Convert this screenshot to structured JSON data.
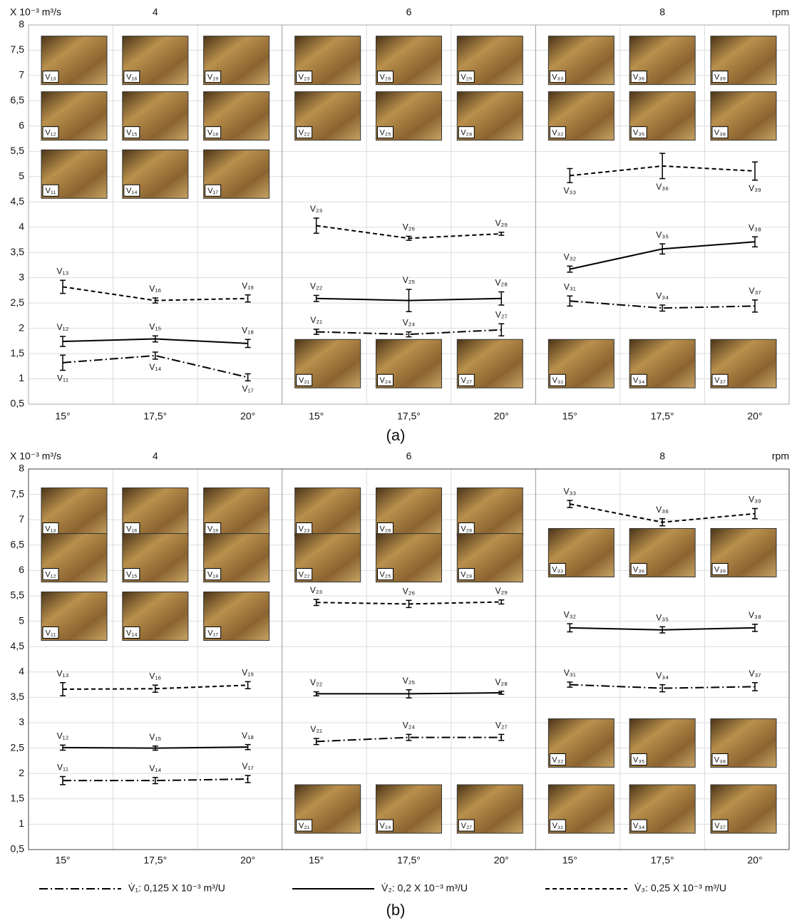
{
  "chart_data": [
    {
      "type": "line",
      "caption": "(a)",
      "y_label": "X 10⁻³ m³/s",
      "group_axis_label": "rpm",
      "groups": [
        "4",
        "6",
        "8"
      ],
      "categories": [
        "15°",
        "17,5°",
        "20°",
        "15°",
        "17,5°",
        "20°",
        "15°",
        "17,5°",
        "20°"
      ],
      "ylim": [
        0.5,
        8
      ],
      "yticks": [
        {
          "value": 0.5,
          "label": "0,5"
        },
        1,
        {
          "value": 1.5,
          "label": "1,5"
        },
        2,
        {
          "value": 2.5,
          "label": "2,5"
        },
        3,
        {
          "value": 3.5,
          "label": "3,5"
        },
        4,
        {
          "value": 4.5,
          "label": "4,5"
        },
        5,
        {
          "value": 5.5,
          "label": "5,5"
        },
        6,
        {
          "value": 6.5,
          "label": "6,5"
        },
        7,
        {
          "value": 7.5,
          "label": "7,5"
        },
        8
      ],
      "series": [
        {
          "dash": "dashdot",
          "color": "#000",
          "values": [
            1.32,
            1.46,
            1.03,
            1.93,
            1.88,
            1.97,
            2.54,
            2.4,
            2.44
          ],
          "errors": [
            0.15,
            0.07,
            0.07,
            0.05,
            0.05,
            0.12,
            0.1,
            0.06,
            0.12
          ],
          "point_labels": [
            "V₁₁",
            "V₁₄",
            "V₁₇",
            "V₂₁",
            "V₂₄",
            "V₂₇",
            "V₃₁",
            "V₃₄",
            "V₃₇"
          ]
        },
        {
          "dash": "solid",
          "color": "#000",
          "values": [
            1.74,
            1.79,
            1.7,
            2.59,
            2.55,
            2.59,
            3.17,
            3.57,
            3.71
          ],
          "errors": [
            0.1,
            0.06,
            0.08,
            0.06,
            0.22,
            0.13,
            0.06,
            0.1,
            0.1
          ],
          "point_labels": [
            "V₁₂",
            "V₁₅",
            "V₁₈",
            "V₂₂",
            "V₂₅",
            "V₂₈",
            "V₃₂",
            "V₃₅",
            "V₃₈"
          ]
        },
        {
          "dash": "dashed",
          "color": "#000",
          "values": [
            2.82,
            2.55,
            2.59,
            4.03,
            3.78,
            3.87,
            5.02,
            5.21,
            5.11
          ],
          "errors": [
            0.13,
            0.05,
            0.07,
            0.15,
            0.04,
            0.03,
            0.14,
            0.25,
            0.18
          ],
          "point_labels": [
            "V₁₃",
            "V₁₆",
            "V₁₉",
            "V₂₃",
            "V₂₆",
            "V₂₉",
            "V₃₃",
            "V₃₆",
            "V₃₉"
          ]
        }
      ],
      "photos": [
        [
          "V₁₃",
          "V₁₆",
          "V₁₉"
        ],
        [
          "V₁₂",
          "V₁₅",
          "V₁₈"
        ],
        [
          "V₁₁",
          "V₁₄",
          "V₁₇"
        ],
        [
          "V₂₃",
          "V₂₆",
          "V₂₉"
        ],
        [
          "V₂₂",
          "V₂₅",
          "V₂₈"
        ],
        [
          "V₂₁",
          "V₂₄",
          "V₂₇"
        ],
        [
          "V₃₃",
          "V₃₆",
          "V₃₉"
        ],
        [
          "V₃₂",
          "V₃₅",
          "V₃₈"
        ],
        [
          "V₃₁",
          "V₃₄",
          "V₃₇"
        ]
      ]
    },
    {
      "type": "line",
      "caption": "(b)",
      "y_label": "X 10⁻³ m³/s",
      "group_axis_label": "rpm",
      "groups": [
        "4",
        "6",
        "8"
      ],
      "categories": [
        "15°",
        "17,5°",
        "20°",
        "15°",
        "17,5°",
        "20°",
        "15°",
        "17,5°",
        "20°"
      ],
      "ylim": [
        0.5,
        8
      ],
      "yticks": [
        {
          "value": 0.5,
          "label": "0,5"
        },
        1,
        {
          "value": 1.5,
          "label": "1,5"
        },
        2,
        {
          "value": 2.5,
          "label": "2,5"
        },
        3,
        {
          "value": 3.5,
          "label": "3,5"
        },
        4,
        {
          "value": 4.5,
          "label": "4,5"
        },
        5,
        {
          "value": 5.5,
          "label": "5,5"
        },
        6,
        {
          "value": 6.5,
          "label": "6,5"
        },
        7,
        {
          "value": 7.5,
          "label": "7,5"
        },
        8
      ],
      "series": [
        {
          "name": "V̇₁: 0,125 X 10⁻³ m³/U",
          "dash": "dashdot",
          "color": "#000",
          "values": [
            1.86,
            1.86,
            1.89,
            2.63,
            2.71,
            2.71,
            3.75,
            3.68,
            3.71
          ],
          "errors": [
            0.08,
            0.06,
            0.07,
            0.06,
            0.06,
            0.06,
            0.05,
            0.07,
            0.08
          ],
          "point_labels": [
            "V₁₁",
            "V₁₄",
            "V₁₇",
            "V₂₁",
            "V₂₄",
            "V₂₇",
            "V₃₁",
            "V₃₄",
            "V₃₇"
          ]
        },
        {
          "name": "V̇₂: 0,2 X 10⁻³ m³/U",
          "dash": "solid",
          "color": "#000",
          "values": [
            2.51,
            2.5,
            2.52,
            3.57,
            3.57,
            3.59,
            4.87,
            4.83,
            4.87
          ],
          "errors": [
            0.05,
            0.04,
            0.05,
            0.04,
            0.08,
            0.03,
            0.08,
            0.06,
            0.07
          ],
          "point_labels": [
            "V₁₂",
            "V₁₅",
            "V₁₈",
            "V₂₂",
            "V₂₅",
            "V₂₈",
            "V₃₂",
            "V₃₅",
            "V₃₈"
          ]
        },
        {
          "name": "V̇₃: 0,25 X 10⁻³ m³/U",
          "dash": "dashed",
          "color": "#000",
          "values": [
            3.66,
            3.67,
            3.74,
            5.37,
            5.34,
            5.38,
            7.31,
            6.95,
            7.12
          ],
          "errors": [
            0.13,
            0.07,
            0.07,
            0.06,
            0.07,
            0.04,
            0.07,
            0.07,
            0.1
          ],
          "point_labels": [
            "V₁₃",
            "V₁₆",
            "V₁₉",
            "V₂₃",
            "V₂₆",
            "V₂₉",
            "V₃₃",
            "V₃₆",
            "V₃₉"
          ]
        }
      ],
      "photos": [
        [
          "V₁₃",
          "V₁₆",
          "V₁₉"
        ],
        [
          "V₁₂",
          "V₁₅",
          "V₁₈"
        ],
        [
          "V₁₁",
          "V₁₄",
          "V₁₇"
        ],
        [
          "V₂₃",
          "V₂₆",
          "V₂₉"
        ],
        [
          "V₂₂",
          "V₂₅",
          "V₂₈"
        ],
        [
          "V₂₁",
          "V₂₄",
          "V₂₇"
        ],
        [
          "V₃₃",
          "V₃₆",
          "V₃₉"
        ],
        [
          "V₃₂",
          "V₃₅",
          "V₃₈"
        ],
        [
          "V₃₁",
          "V₃₄",
          "V₃₇"
        ]
      ]
    }
  ]
}
